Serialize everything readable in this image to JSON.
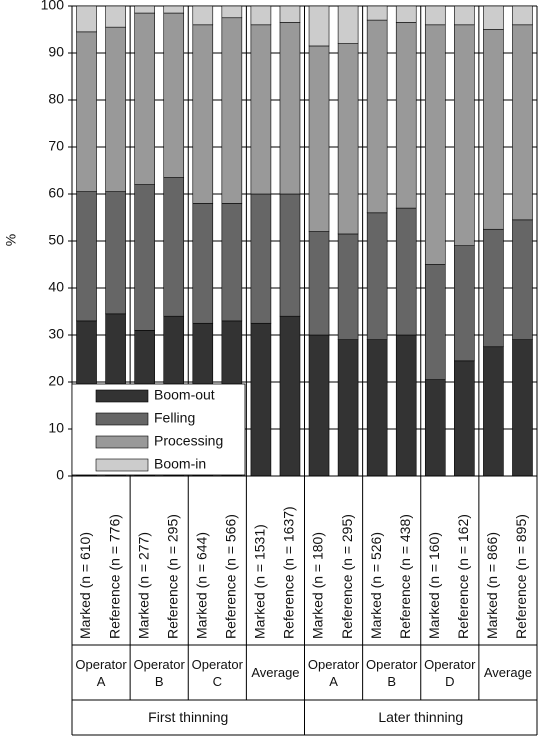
{
  "chart_data": {
    "type": "bar",
    "stacked": true,
    "y_label": "%",
    "ylim": [
      0,
      100
    ],
    "yticks": [
      0,
      10,
      20,
      30,
      40,
      50,
      60,
      70,
      80,
      90,
      100
    ],
    "grid": true,
    "legend_position": "lower-left",
    "categories": [
      "Marked (n = 610)",
      "Reference (n = 776)",
      "Marked (n = 277)",
      "Reference (n = 295)",
      "Marked (n = 644)",
      "Reference (n = 566)",
      "Marked (n = 1531)",
      "Reference (n = 1637)",
      "Marked (n = 180)",
      "Reference (n = 295)",
      "Marked (n = 526)",
      "Reference (n = 438)",
      "Marked (n = 160)",
      "Reference (n = 162)",
      "Marked (n = 866)",
      "Reference (n = 895)"
    ],
    "groups": [
      "Operator A",
      "Operator B",
      "Operator C",
      "Average",
      "Operator A",
      "Operator B",
      "Operator D",
      "Average"
    ],
    "supergroups": [
      "First thinning",
      "Later thinning"
    ],
    "series": [
      {
        "name": "Boom-out",
        "color": "#333333",
        "values": [
          33,
          34.5,
          31,
          34,
          32.5,
          33,
          32.5,
          34,
          30,
          29,
          29,
          30,
          20.5,
          24.5,
          27.5,
          29
        ]
      },
      {
        "name": "Felling",
        "color": "#666666",
        "values": [
          27.5,
          26,
          31,
          29.5,
          25.5,
          25,
          27.5,
          26,
          22,
          22.5,
          27,
          27,
          24.5,
          24.5,
          25,
          25.5
        ]
      },
      {
        "name": "Processing",
        "color": "#999999",
        "values": [
          34,
          35,
          36.5,
          35,
          38,
          39.5,
          36,
          36.5,
          39.5,
          40.5,
          41,
          39.5,
          51,
          47,
          42.5,
          41.5
        ]
      },
      {
        "name": "Boom-in",
        "color": "#cccccc",
        "values": [
          5.5,
          4.5,
          1.5,
          1.5,
          4,
          2.5,
          4,
          3.5,
          8.5,
          8,
          3,
          3.5,
          4,
          4,
          5,
          4
        ]
      }
    ]
  }
}
